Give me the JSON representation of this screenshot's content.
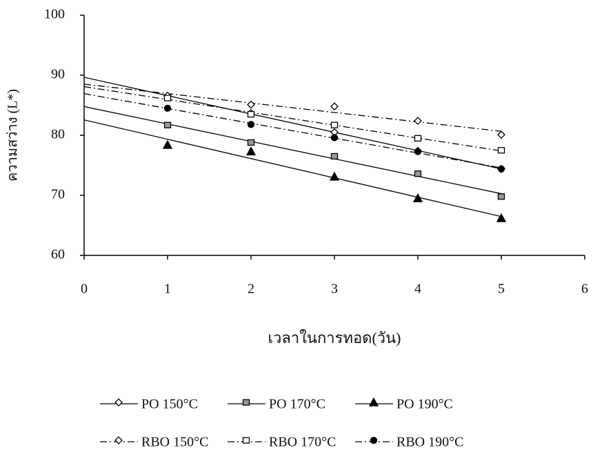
{
  "chart_data": {
    "type": "line",
    "x_label": "เวลาในการทอด(วัน)",
    "y_label": "ความสว่าง (L*)",
    "x": [
      1,
      2,
      3,
      4,
      5
    ],
    "xlim": [
      0,
      6
    ],
    "xticks": [
      0,
      1,
      2,
      3,
      4,
      5,
      6
    ],
    "ylim": [
      60,
      100
    ],
    "yticks": [
      60,
      70,
      80,
      90,
      100
    ],
    "trendline": true,
    "series": [
      {
        "name": "PO 150°C",
        "color": "#000000",
        "marker": "diamond-open",
        "line_style": "solid",
        "values": [
          86.5,
          83.7,
          80.5,
          77.4,
          74.4
        ]
      },
      {
        "name": "PO 170°C",
        "color": "#000000",
        "marker": "square-hatched",
        "line_style": "solid",
        "values": [
          81.7,
          78.8,
          76.5,
          73.6,
          69.8
        ]
      },
      {
        "name": "PO 190°C",
        "color": "#000000",
        "marker": "triangle-filled",
        "line_style": "solid",
        "values": [
          78.4,
          77.3,
          73.1,
          69.5,
          66.2
        ]
      },
      {
        "name": "RBO 150°C",
        "color": "#000000",
        "marker": "diamond-open",
        "line_style": "dashdot",
        "values": [
          86.6,
          85.1,
          84.8,
          82.4,
          80.1
        ]
      },
      {
        "name": "RBO 170°C",
        "color": "#000000",
        "marker": "square-open",
        "line_style": "dashdot",
        "values": [
          86.2,
          83.5,
          81.7,
          79.5,
          77.5
        ]
      },
      {
        "name": "RBO 190°C",
        "color": "#000000",
        "marker": "circle-filled",
        "line_style": "dashdot",
        "values": [
          84.5,
          81.8,
          79.6,
          77.3,
          74.4
        ]
      }
    ]
  }
}
